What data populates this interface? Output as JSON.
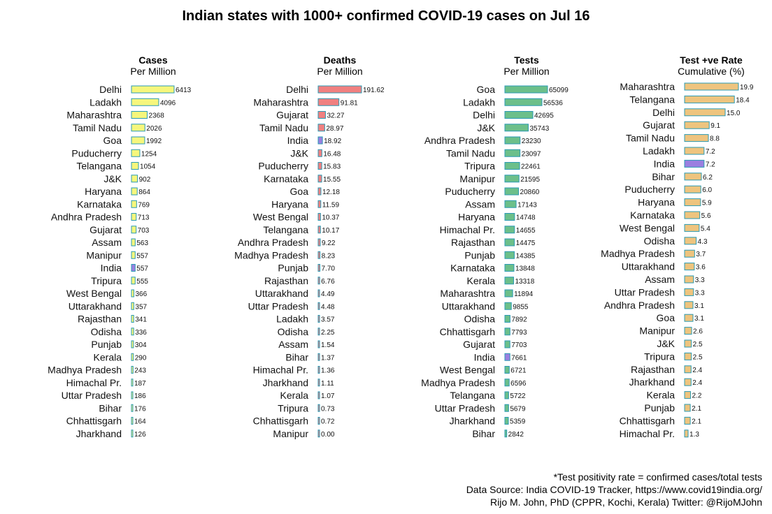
{
  "title": "Indian states with 1000+ confirmed COVID-19 cases on Jul 16",
  "colors": {
    "cases_bar": "#f6f67c",
    "deaths_bar": "#f08080",
    "tests_bar": "#6cbf8a",
    "positivity_bar": "#eec47e",
    "india_bar": "#9b7fe0",
    "bar_border": "#2b9bb5"
  },
  "chart_data": [
    {
      "type": "bar",
      "orientation": "horizontal",
      "title": "Cases",
      "subtitle": "Per Million",
      "categories": [
        "Delhi",
        "Ladakh",
        "Maharashtra",
        "Tamil Nadu",
        "Goa",
        "Puducherry",
        "Telangana",
        "J&K",
        "Haryana",
        "Karnataka",
        "Andhra Pradesh",
        "Gujarat",
        "Assam",
        "Manipur",
        "India",
        "Tripura",
        "West Bengal",
        "Uttarakhand",
        "Rajasthan",
        "Odisha",
        "Punjab",
        "Kerala",
        "Madhya Pradesh",
        "Himachal Pr.",
        "Uttar Pradesh",
        "Bihar",
        "Chhattisgarh",
        "Jharkhand"
      ],
      "values": [
        6413,
        4096,
        2368,
        2026,
        1992,
        1254,
        1054,
        902,
        864,
        769,
        713,
        703,
        563,
        557,
        557,
        555,
        366,
        357,
        341,
        336,
        304,
        290,
        243,
        187,
        186,
        176,
        164,
        126
      ],
      "labels": [
        "6413",
        "4096",
        "2368",
        "2026",
        "1992",
        "1254",
        "1054",
        "902",
        "864",
        "769",
        "713",
        "703",
        "563",
        "557",
        "557",
        "555",
        "366",
        "357",
        "341",
        "336",
        "304",
        "290",
        "243",
        "187",
        "186",
        "176",
        "164",
        "126"
      ],
      "xlim": [
        0,
        6413
      ]
    },
    {
      "type": "bar",
      "orientation": "horizontal",
      "title": "Deaths",
      "subtitle": "Per Million",
      "categories": [
        "Delhi",
        "Maharashtra",
        "Gujarat",
        "Tamil Nadu",
        "India",
        "J&K",
        "Puducherry",
        "Karnataka",
        "Goa",
        "Haryana",
        "West Bengal",
        "Telangana",
        "Andhra Pradesh",
        "Madhya Pradesh",
        "Punjab",
        "Rajasthan",
        "Uttarakhand",
        "Uttar Pradesh",
        "Ladakh",
        "Odisha",
        "Assam",
        "Bihar",
        "Himachal Pr.",
        "Jharkhand",
        "Kerala",
        "Tripura",
        "Chhattisgarh",
        "Manipur"
      ],
      "values": [
        191.62,
        91.81,
        32.27,
        28.97,
        18.92,
        16.48,
        15.83,
        15.55,
        12.18,
        11.59,
        10.37,
        10.17,
        9.22,
        8.23,
        7.7,
        6.76,
        4.49,
        4.48,
        3.57,
        2.25,
        1.54,
        1.37,
        1.36,
        1.11,
        1.07,
        0.73,
        0.72,
        0.0
      ],
      "labels": [
        "191.62",
        "91.81",
        "32.27",
        "28.97",
        "18.92",
        "16.48",
        "15.83",
        "15.55",
        "12.18",
        "11.59",
        "10.37",
        "10.17",
        "9.22",
        "8.23",
        "7.70",
        "6.76",
        "4.49",
        "4.48",
        "3.57",
        "2.25",
        "1.54",
        "1.37",
        "1.36",
        "1.11",
        "1.07",
        "0.73",
        "0.72",
        "0.00"
      ],
      "xlim": [
        0,
        191.62
      ]
    },
    {
      "type": "bar",
      "orientation": "horizontal",
      "title": "Tests",
      "subtitle": "Per Million",
      "categories": [
        "Goa",
        "Ladakh",
        "Delhi",
        "J&K",
        "Andhra Pradesh",
        "Tamil Nadu",
        "Tripura",
        "Manipur",
        "Puducherry",
        "Assam",
        "Haryana",
        "Himachal Pr.",
        "Rajasthan",
        "Punjab",
        "Karnataka",
        "Kerala",
        "Maharashtra",
        "Uttarakhand",
        "Odisha",
        "Chhattisgarh",
        "Gujarat",
        "India",
        "West Bengal",
        "Madhya Pradesh",
        "Telangana",
        "Uttar Pradesh",
        "Jharkhand",
        "Bihar"
      ],
      "values": [
        65099,
        56536,
        42695,
        35743,
        23230,
        23097,
        22461,
        21595,
        20860,
        17143,
        14748,
        14655,
        14475,
        14385,
        13848,
        13318,
        11894,
        9855,
        7892,
        7793,
        7703,
        7661,
        6721,
        6596,
        5722,
        5679,
        5359,
        2842
      ],
      "labels": [
        "65099",
        "56536",
        "42695",
        "35743",
        "23230",
        "23097",
        "22461",
        "21595",
        "20860",
        "17143",
        "14748",
        "14655",
        "14475",
        "14385",
        "13848",
        "13318",
        "11894",
        "9855",
        "7892",
        "7793",
        "7703",
        "7661",
        "6721",
        "6596",
        "5722",
        "5679",
        "5359",
        "2842"
      ],
      "xlim": [
        0,
        65099
      ]
    },
    {
      "type": "bar",
      "orientation": "horizontal",
      "title": "Test +ve Rate",
      "subtitle": "Cumulative (%)",
      "categories": [
        "Maharashtra",
        "Telangana",
        "Delhi",
        "Gujarat",
        "Tamil Nadu",
        "Ladakh",
        "India",
        "Bihar",
        "Puducherry",
        "Haryana",
        "Karnataka",
        "West Bengal",
        "Odisha",
        "Madhya Pradesh",
        "Uttarakhand",
        "Assam",
        "Uttar Pradesh",
        "Andhra Pradesh",
        "Goa",
        "Manipur",
        "J&K",
        "Tripura",
        "Rajasthan",
        "Jharkhand",
        "Kerala",
        "Punjab",
        "Chhattisgarh",
        "Himachal Pr."
      ],
      "values": [
        19.9,
        18.4,
        15.0,
        9.1,
        8.8,
        7.2,
        7.2,
        6.2,
        6.0,
        5.9,
        5.6,
        5.4,
        4.3,
        3.7,
        3.6,
        3.3,
        3.3,
        3.1,
        3.1,
        2.6,
        2.5,
        2.5,
        2.4,
        2.4,
        2.2,
        2.1,
        2.1,
        1.3
      ],
      "labels": [
        "19.9",
        "18.4",
        "15.0",
        "9.1",
        "8.8",
        "7.2",
        "7.2",
        "6.2",
        "6.0",
        "5.9",
        "5.6",
        "5.4",
        "4.3",
        "3.7",
        "3.6",
        "3.3",
        "3.3",
        "3.1",
        "3.1",
        "2.6",
        "2.5",
        "2.5",
        "2.4",
        "2.4",
        "2.2",
        "2.1",
        "2.1",
        "1.3"
      ],
      "xlim": [
        0,
        19.9
      ]
    }
  ],
  "footer": {
    "note": "*Test positivity rate = confirmed cases/total tests",
    "source": "Data Source: India COVID-19 Tracker, https://www.covid19india.org/",
    "credit": "Rijo M. John, PhD (CPPR, Kochi, Kerala) Twitter: @RijoMJohn"
  }
}
